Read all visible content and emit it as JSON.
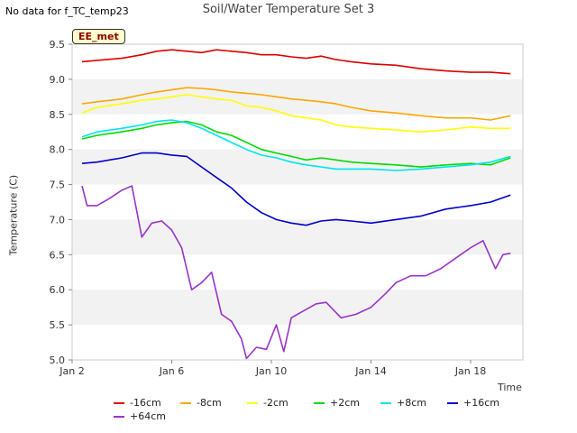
{
  "header": {
    "nodata": "No data for f_TC_temp23",
    "title": "Soil/Water Temperature Set 3",
    "badge": "EE_met"
  },
  "chart_data": {
    "type": "line",
    "title": "Soil/Water Temperature Set 3",
    "xlabel": "Time",
    "ylabel": "Temperature (C)",
    "x_ticks": [
      "Jan 2",
      "Jan 6",
      "Jan 10",
      "Jan 14",
      "Jan 18"
    ],
    "x_tick_days": [
      2,
      6,
      10,
      14,
      18
    ],
    "xlim": [
      2,
      20.1
    ],
    "ylim": [
      5.0,
      9.5
    ],
    "y_ticks": [
      5.0,
      5.5,
      6.0,
      6.5,
      7.0,
      7.5,
      8.0,
      8.5,
      9.0,
      9.5
    ],
    "grid": "horizontal bands",
    "legend_position": "bottom",
    "series": [
      {
        "name": "-16cm",
        "color": "#dd0000",
        "x": [
          2.4,
          3.0,
          4.0,
          4.8,
          5.4,
          6.0,
          6.6,
          7.2,
          7.8,
          8.4,
          9.0,
          9.6,
          10.2,
          10.8,
          11.4,
          12.0,
          12.6,
          13.2,
          14.0,
          15.0,
          16.0,
          17.0,
          18.0,
          18.8,
          19.6
        ],
        "values": [
          9.25,
          9.27,
          9.3,
          9.35,
          9.4,
          9.42,
          9.4,
          9.38,
          9.42,
          9.4,
          9.38,
          9.35,
          9.35,
          9.32,
          9.3,
          9.33,
          9.28,
          9.25,
          9.22,
          9.2,
          9.15,
          9.12,
          9.1,
          9.1,
          9.08
        ]
      },
      {
        "name": "-8cm",
        "color": "#ffa500",
        "x": [
          2.4,
          3.0,
          4.0,
          4.8,
          5.4,
          6.0,
          6.6,
          7.2,
          7.8,
          8.4,
          9.0,
          9.6,
          10.2,
          10.8,
          11.4,
          12.0,
          12.6,
          13.2,
          14.0,
          15.0,
          16.0,
          17.0,
          18.0,
          18.8,
          19.6
        ],
        "values": [
          8.65,
          8.68,
          8.72,
          8.78,
          8.82,
          8.85,
          8.88,
          8.87,
          8.85,
          8.82,
          8.8,
          8.78,
          8.75,
          8.72,
          8.7,
          8.68,
          8.65,
          8.6,
          8.55,
          8.52,
          8.48,
          8.45,
          8.45,
          8.42,
          8.48
        ]
      },
      {
        "name": "-2cm",
        "color": "#ffff00",
        "x": [
          2.4,
          3.0,
          4.0,
          4.8,
          5.4,
          6.0,
          6.6,
          7.2,
          7.8,
          8.4,
          9.0,
          9.6,
          10.2,
          10.8,
          11.4,
          12.0,
          12.6,
          13.2,
          14.0,
          15.0,
          16.0,
          17.0,
          18.0,
          18.8,
          19.6
        ],
        "values": [
          8.52,
          8.6,
          8.65,
          8.7,
          8.72,
          8.75,
          8.78,
          8.75,
          8.72,
          8.7,
          8.62,
          8.6,
          8.55,
          8.48,
          8.45,
          8.42,
          8.35,
          8.32,
          8.3,
          8.28,
          8.25,
          8.28,
          8.32,
          8.3,
          8.3
        ]
      },
      {
        "name": "+2cm",
        "color": "#00dd00",
        "x": [
          2.4,
          3.0,
          4.0,
          4.8,
          5.4,
          6.0,
          6.6,
          7.2,
          7.8,
          8.4,
          9.0,
          9.6,
          10.2,
          10.8,
          11.4,
          12.0,
          12.6,
          13.2,
          14.0,
          15.0,
          16.0,
          17.0,
          18.0,
          18.8,
          19.6
        ],
        "values": [
          8.15,
          8.2,
          8.25,
          8.3,
          8.35,
          8.38,
          8.4,
          8.35,
          8.25,
          8.2,
          8.1,
          8.0,
          7.95,
          7.9,
          7.85,
          7.88,
          7.85,
          7.82,
          7.8,
          7.78,
          7.75,
          7.78,
          7.8,
          7.78,
          7.88
        ]
      },
      {
        "name": "+8cm",
        "color": "#00e5ee",
        "x": [
          2.4,
          3.0,
          4.0,
          4.8,
          5.4,
          6.0,
          6.6,
          7.2,
          7.8,
          8.4,
          9.0,
          9.6,
          10.2,
          10.8,
          11.4,
          12.0,
          12.6,
          13.2,
          14.0,
          15.0,
          16.0,
          17.0,
          18.0,
          18.8,
          19.6
        ],
        "values": [
          8.18,
          8.25,
          8.3,
          8.35,
          8.4,
          8.42,
          8.38,
          8.3,
          8.2,
          8.1,
          8.0,
          7.92,
          7.88,
          7.82,
          7.78,
          7.75,
          7.72,
          7.72,
          7.72,
          7.7,
          7.72,
          7.75,
          7.78,
          7.82,
          7.9
        ]
      },
      {
        "name": "+16cm",
        "color": "#0000cc",
        "x": [
          2.4,
          3.0,
          4.0,
          4.8,
          5.4,
          6.0,
          6.6,
          7.2,
          7.8,
          8.4,
          9.0,
          9.6,
          10.2,
          10.8,
          11.4,
          12.0,
          12.6,
          13.2,
          14.0,
          15.0,
          16.0,
          17.0,
          18.0,
          18.8,
          19.6
        ],
        "values": [
          7.8,
          7.82,
          7.88,
          7.95,
          7.95,
          7.92,
          7.9,
          7.75,
          7.6,
          7.45,
          7.25,
          7.1,
          7.0,
          6.95,
          6.92,
          6.98,
          7.0,
          6.98,
          6.95,
          7.0,
          7.05,
          7.15,
          7.2,
          7.25,
          7.35
        ]
      },
      {
        "name": "+64cm",
        "color": "#9932cc",
        "x": [
          2.4,
          2.6,
          3.0,
          3.5,
          4.0,
          4.4,
          4.8,
          5.2,
          5.6,
          6.0,
          6.4,
          6.8,
          7.2,
          7.6,
          8.0,
          8.4,
          8.8,
          9.0,
          9.4,
          9.8,
          10.2,
          10.5,
          10.8,
          11.2,
          11.8,
          12.2,
          12.8,
          13.4,
          14.0,
          14.6,
          15.0,
          15.6,
          16.2,
          16.8,
          17.4,
          18.0,
          18.5,
          19.0,
          19.3,
          19.6
        ],
        "values": [
          7.48,
          7.2,
          7.2,
          7.3,
          7.42,
          7.48,
          6.75,
          6.95,
          6.98,
          6.85,
          6.6,
          6.0,
          6.1,
          6.25,
          5.65,
          5.55,
          5.3,
          5.02,
          5.18,
          5.15,
          5.5,
          5.12,
          5.6,
          5.68,
          5.8,
          5.82,
          5.6,
          5.65,
          5.75,
          5.95,
          6.1,
          6.2,
          6.2,
          6.3,
          6.45,
          6.6,
          6.7,
          6.3,
          6.5,
          6.52
        ]
      }
    ]
  }
}
